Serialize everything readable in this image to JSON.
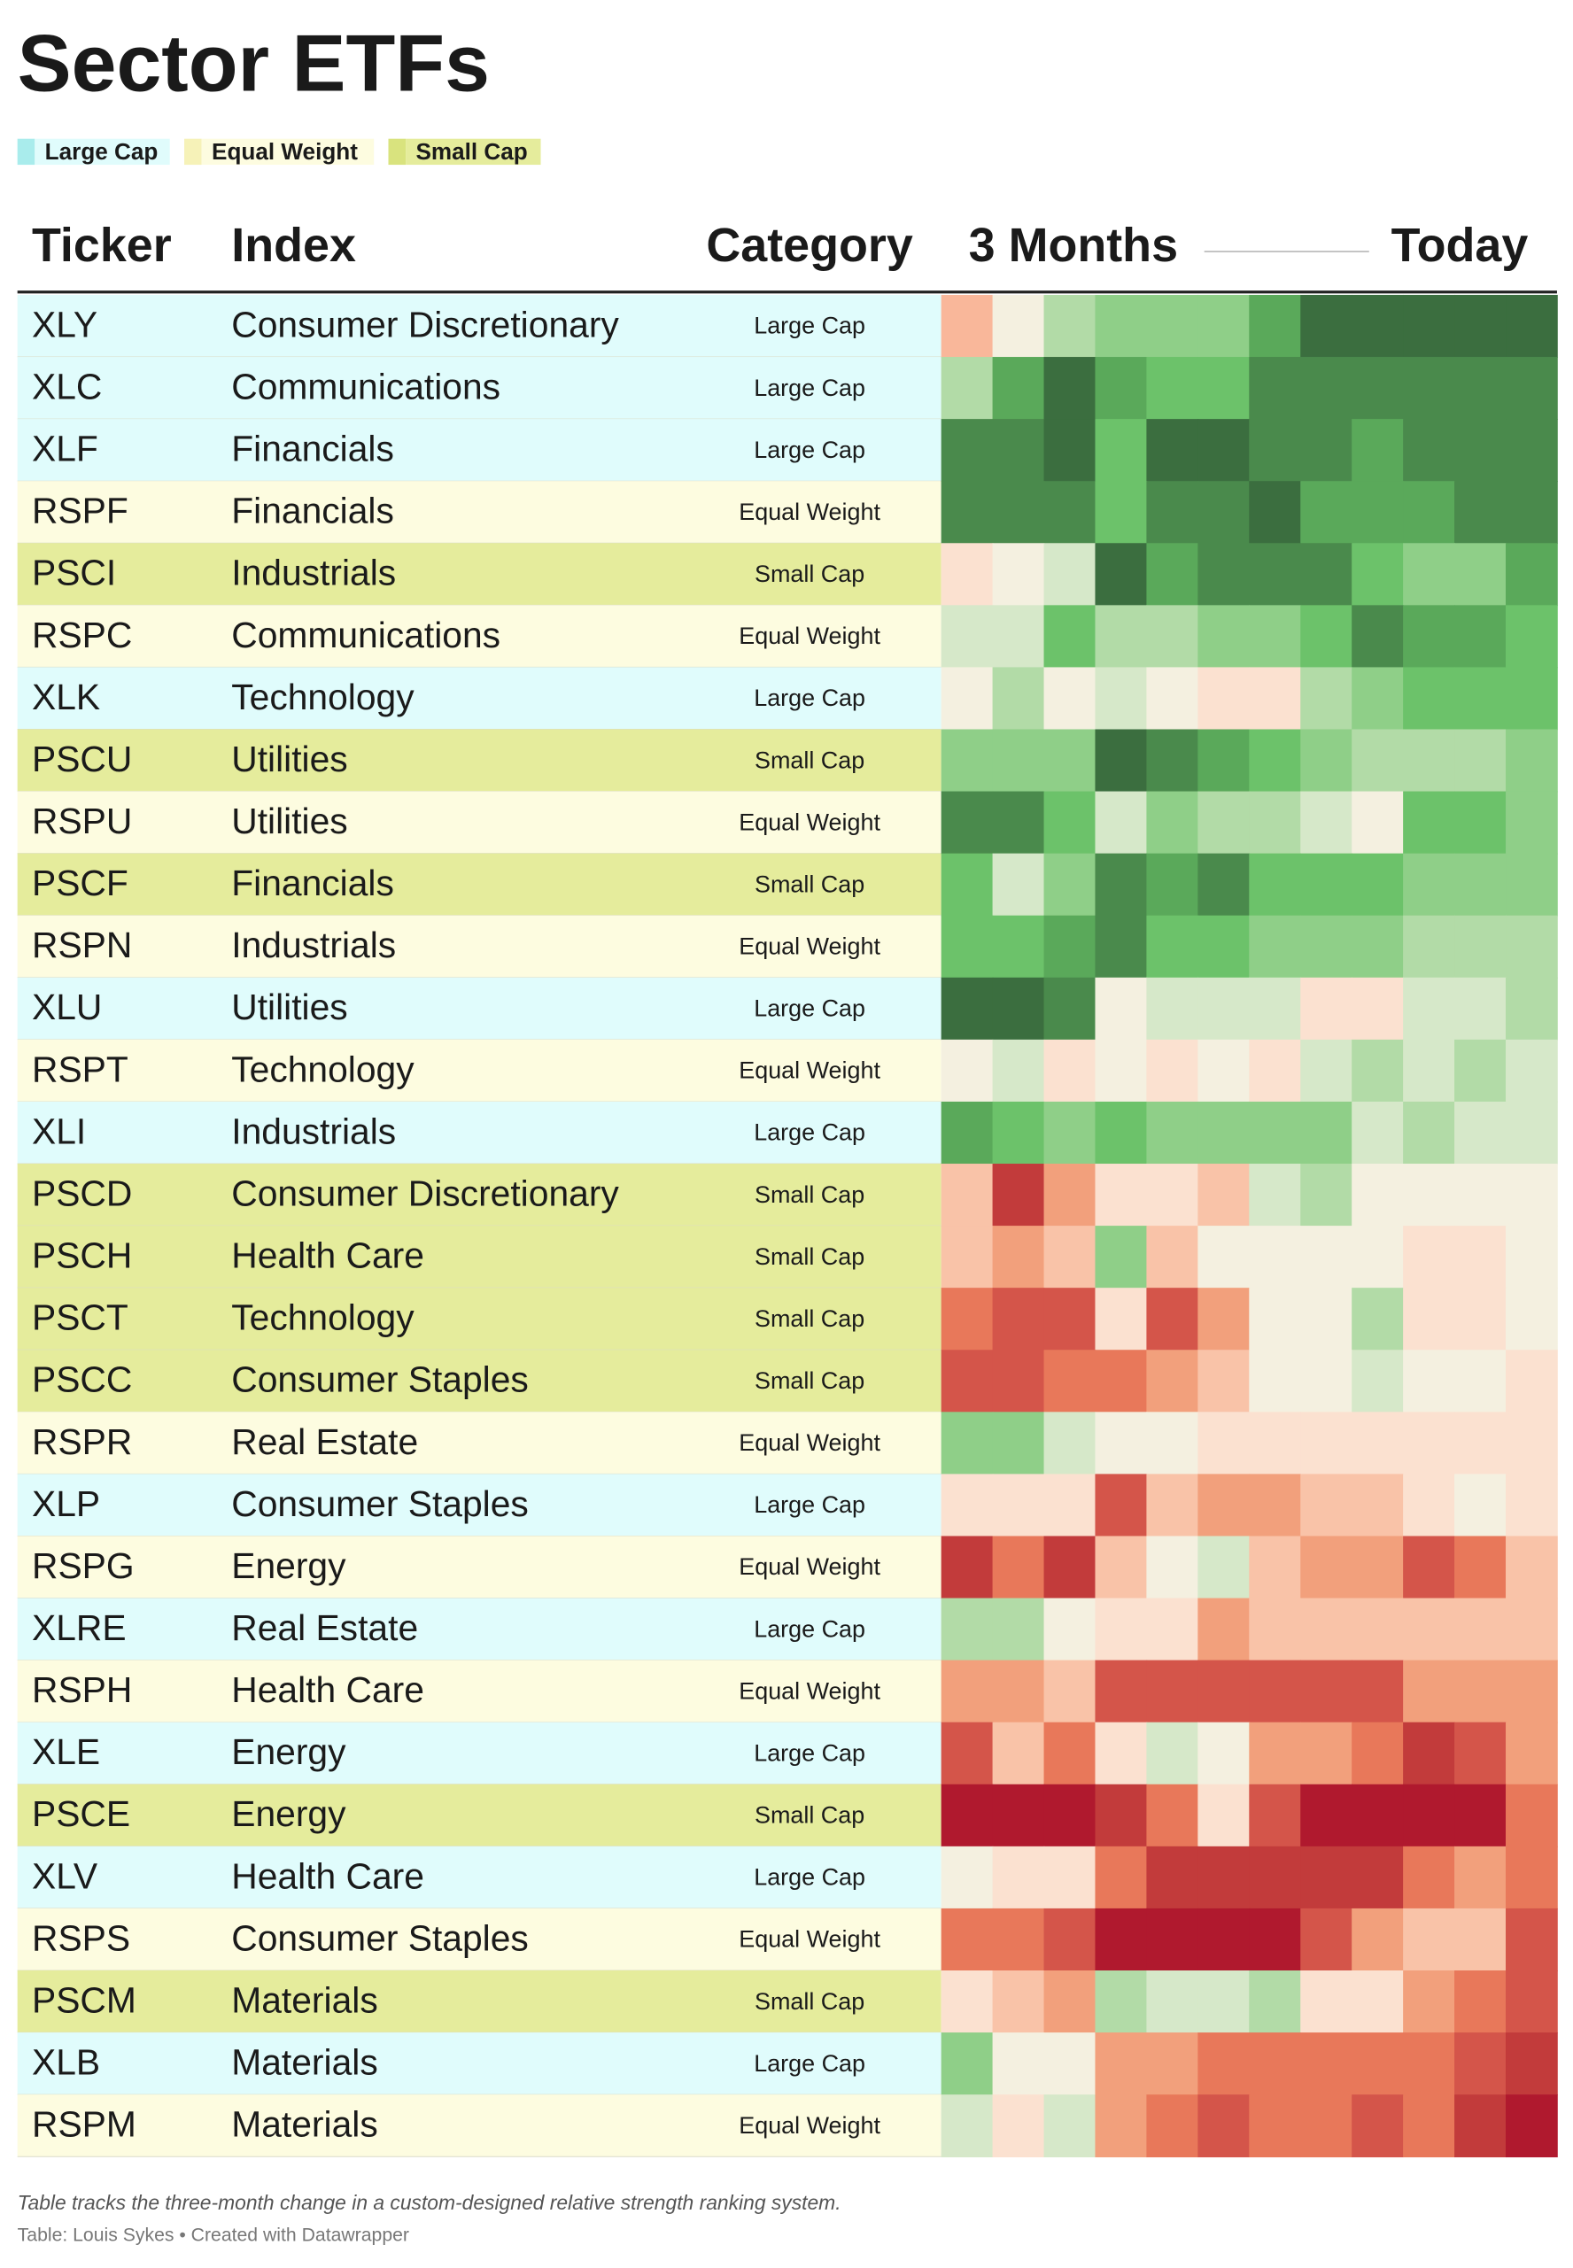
{
  "title": "Sector ETFs",
  "legend": [
    {
      "label": "Large Cap",
      "color": "#a9ecec",
      "row_color": "#e0fcfc"
    },
    {
      "label": "Equal Weight",
      "color": "#f6f2b8",
      "row_color": "#fdfce0"
    },
    {
      "label": "Small Cap",
      "color": "#d9e37e",
      "row_color": "#e5ec9c"
    }
  ],
  "columns": {
    "ticker": "Ticker",
    "index": "Index",
    "category": "Category",
    "from": "3 Months",
    "to": "Today"
  },
  "rows": [
    {
      "ticker": "XLY",
      "index": "Consumer Discretionary",
      "category": "Large Cap",
      "heat": [
        "#f9b79a",
        "#f4f0e0",
        "#b2dba7",
        "#8fcf88",
        "#8fcf88",
        "#8fcf88",
        "#5aa95a",
        "#3b6e3f",
        "#3b6e3f",
        "#3b6e3f",
        "#3b6e3f",
        "#3b6e3f"
      ]
    },
    {
      "ticker": "XLC",
      "index": "Communications",
      "category": "Large Cap",
      "heat": [
        "#b2dba7",
        "#5aa95a",
        "#3b6e3f",
        "#5aa95a",
        "#6cc26a",
        "#6cc26a",
        "#4a8a4c",
        "#4a8a4c",
        "#4a8a4c",
        "#4a8a4c",
        "#4a8a4c",
        "#4a8a4c"
      ]
    },
    {
      "ticker": "XLF",
      "index": "Financials",
      "category": "Large Cap",
      "heat": [
        "#4a8a4c",
        "#4a8a4c",
        "#3b6e3f",
        "#6cc26a",
        "#3b6e3f",
        "#3b6e3f",
        "#4a8a4c",
        "#4a8a4c",
        "#5aa95a",
        "#4a8a4c",
        "#4a8a4c",
        "#4a8a4c"
      ]
    },
    {
      "ticker": "RSPF",
      "index": "Financials",
      "category": "Equal Weight",
      "heat": [
        "#4a8a4c",
        "#4a8a4c",
        "#4a8a4c",
        "#6cc26a",
        "#4a8a4c",
        "#4a8a4c",
        "#3b6e3f",
        "#5aa95a",
        "#5aa95a",
        "#5aa95a",
        "#4a8a4c",
        "#4a8a4c"
      ]
    },
    {
      "ticker": "PSCI",
      "index": "Industrials",
      "category": "Small Cap",
      "heat": [
        "#fbe1d0",
        "#f4f0e0",
        "#d6e8c9",
        "#3b6e3f",
        "#5aa95a",
        "#4a8a4c",
        "#4a8a4c",
        "#4a8a4c",
        "#6cc26a",
        "#8fcf88",
        "#8fcf88",
        "#5aa95a"
      ]
    },
    {
      "ticker": "RSPC",
      "index": "Communications",
      "category": "Equal Weight",
      "heat": [
        "#d6e8c9",
        "#d6e8c9",
        "#6cc26a",
        "#b2dba7",
        "#b2dba7",
        "#8fcf88",
        "#8fcf88",
        "#6cc26a",
        "#4a8a4c",
        "#5aa95a",
        "#5aa95a",
        "#6cc26a"
      ]
    },
    {
      "ticker": "XLK",
      "index": "Technology",
      "category": "Large Cap",
      "heat": [
        "#f4f0e0",
        "#b2dba7",
        "#f4f0e0",
        "#d6e8c9",
        "#f4f0e0",
        "#fbe1d0",
        "#fbe1d0",
        "#b2dba7",
        "#8fcf88",
        "#6cc26a",
        "#6cc26a",
        "#6cc26a"
      ]
    },
    {
      "ticker": "PSCU",
      "index": "Utilities",
      "category": "Small Cap",
      "heat": [
        "#8fcf88",
        "#8fcf88",
        "#8fcf88",
        "#3b6e3f",
        "#4a8a4c",
        "#5aa95a",
        "#6cc26a",
        "#8fcf88",
        "#b2dba7",
        "#b2dba7",
        "#b2dba7",
        "#8fcf88"
      ]
    },
    {
      "ticker": "RSPU",
      "index": "Utilities",
      "category": "Equal Weight",
      "heat": [
        "#4a8a4c",
        "#4a8a4c",
        "#6cc26a",
        "#d6e8c9",
        "#8fcf88",
        "#b2dba7",
        "#b2dba7",
        "#d6e8c9",
        "#f4f0e0",
        "#6cc26a",
        "#6cc26a",
        "#8fcf88"
      ]
    },
    {
      "ticker": "PSCF",
      "index": "Financials",
      "category": "Small Cap",
      "heat": [
        "#6cc26a",
        "#d6e8c9",
        "#8fcf88",
        "#4a8a4c",
        "#5aa95a",
        "#4a8a4c",
        "#6cc26a",
        "#6cc26a",
        "#6cc26a",
        "#8fcf88",
        "#8fcf88",
        "#8fcf88"
      ]
    },
    {
      "ticker": "RSPN",
      "index": "Industrials",
      "category": "Equal Weight",
      "heat": [
        "#6cc26a",
        "#6cc26a",
        "#5aa95a",
        "#4a8a4c",
        "#6cc26a",
        "#6cc26a",
        "#8fcf88",
        "#8fcf88",
        "#8fcf88",
        "#b2dba7",
        "#b2dba7",
        "#b2dba7"
      ]
    },
    {
      "ticker": "XLU",
      "index": "Utilities",
      "category": "Large Cap",
      "heat": [
        "#3b6e3f",
        "#3b6e3f",
        "#4a8a4c",
        "#f4f0e0",
        "#d6e8c9",
        "#d6e8c9",
        "#d6e8c9",
        "#fbe1d0",
        "#fbe1d0",
        "#d6e8c9",
        "#d6e8c9",
        "#b2dba7"
      ]
    },
    {
      "ticker": "RSPT",
      "index": "Technology",
      "category": "Equal Weight",
      "heat": [
        "#f4f0e0",
        "#d6e8c9",
        "#fbe1d0",
        "#f4f0e0",
        "#fbe1d0",
        "#f4f0e0",
        "#fbe1d0",
        "#d6e8c9",
        "#b2dba7",
        "#d6e8c9",
        "#b2dba7",
        "#d6e8c9"
      ]
    },
    {
      "ticker": "XLI",
      "index": "Industrials",
      "category": "Large Cap",
      "heat": [
        "#5aa95a",
        "#6cc26a",
        "#8fcf88",
        "#6cc26a",
        "#8fcf88",
        "#8fcf88",
        "#8fcf88",
        "#8fcf88",
        "#d6e8c9",
        "#b2dba7",
        "#d6e8c9",
        "#d6e8c9"
      ]
    },
    {
      "ticker": "PSCD",
      "index": "Consumer Discretionary",
      "category": "Small Cap",
      "heat": [
        "#f9c3a8",
        "#c23b3b",
        "#f2a07c",
        "#fbe1d0",
        "#fbe1d0",
        "#f9c3a8",
        "#d6e8c9",
        "#b2dba7",
        "#f4f0e0",
        "#f4f0e0",
        "#f4f0e0",
        "#f4f0e0"
      ]
    },
    {
      "ticker": "PSCH",
      "index": "Health Care",
      "category": "Small Cap",
      "heat": [
        "#f9c3a8",
        "#f2a07c",
        "#f9c3a8",
        "#8fcf88",
        "#f9c3a8",
        "#f4f0e0",
        "#f4f0e0",
        "#f4f0e0",
        "#f4f0e0",
        "#fbe1d0",
        "#fbe1d0",
        "#f4f0e0"
      ]
    },
    {
      "ticker": "PSCT",
      "index": "Technology",
      "category": "Small Cap",
      "heat": [
        "#e8785a",
        "#d4554a",
        "#d4554a",
        "#fbe1d0",
        "#d4554a",
        "#f2a07c",
        "#f4f0e0",
        "#f4f0e0",
        "#b2dba7",
        "#fbe1d0",
        "#fbe1d0",
        "#f4f0e0"
      ]
    },
    {
      "ticker": "PSCC",
      "index": "Consumer Staples",
      "category": "Small Cap",
      "heat": [
        "#d4554a",
        "#d4554a",
        "#e8785a",
        "#e8785a",
        "#f2a07c",
        "#f9c3a8",
        "#f4f0e0",
        "#f4f0e0",
        "#d6e8c9",
        "#f4f0e0",
        "#f4f0e0",
        "#fbe1d0"
      ]
    },
    {
      "ticker": "RSPR",
      "index": "Real Estate",
      "category": "Equal Weight",
      "heat": [
        "#8fcf88",
        "#8fcf88",
        "#d6e8c9",
        "#f4f0e0",
        "#f4f0e0",
        "#fbe1d0",
        "#fbe1d0",
        "#fbe1d0",
        "#fbe1d0",
        "#fbe1d0",
        "#fbe1d0",
        "#fbe1d0"
      ]
    },
    {
      "ticker": "XLP",
      "index": "Consumer Staples",
      "category": "Large Cap",
      "heat": [
        "#fbe1d0",
        "#fbe1d0",
        "#fbe1d0",
        "#d4554a",
        "#f9c3a8",
        "#f2a07c",
        "#f2a07c",
        "#f9c3a8",
        "#f9c3a8",
        "#fbe1d0",
        "#f4f0e0",
        "#fbe1d0"
      ]
    },
    {
      "ticker": "RSPG",
      "index": "Energy",
      "category": "Equal Weight",
      "heat": [
        "#c23b3b",
        "#e8785a",
        "#c23b3b",
        "#f9c3a8",
        "#f4f0e0",
        "#d6e8c9",
        "#f9c3a8",
        "#f2a07c",
        "#f2a07c",
        "#d4554a",
        "#e8785a",
        "#f9c3a8"
      ]
    },
    {
      "ticker": "XLRE",
      "index": "Real Estate",
      "category": "Large Cap",
      "heat": [
        "#b2dba7",
        "#b2dba7",
        "#f4f0e0",
        "#fbe1d0",
        "#fbe1d0",
        "#f2a07c",
        "#f9c3a8",
        "#f9c3a8",
        "#f9c3a8",
        "#f9c3a8",
        "#f9c3a8",
        "#f9c3a8"
      ]
    },
    {
      "ticker": "RSPH",
      "index": "Health Care",
      "category": "Equal Weight",
      "heat": [
        "#f2a07c",
        "#f2a07c",
        "#f9c3a8",
        "#d4554a",
        "#d4554a",
        "#d4554a",
        "#d4554a",
        "#d4554a",
        "#d4554a",
        "#f2a07c",
        "#f2a07c",
        "#f2a07c"
      ]
    },
    {
      "ticker": "XLE",
      "index": "Energy",
      "category": "Large Cap",
      "heat": [
        "#d4554a",
        "#f9c3a8",
        "#e8785a",
        "#fbe1d0",
        "#d6e8c9",
        "#f4f0e0",
        "#f2a07c",
        "#f2a07c",
        "#e8785a",
        "#c23b3b",
        "#d4554a",
        "#f2a07c"
      ]
    },
    {
      "ticker": "PSCE",
      "index": "Energy",
      "category": "Small Cap",
      "heat": [
        "#b0192e",
        "#b0192e",
        "#b0192e",
        "#c23b3b",
        "#e8785a",
        "#fbe1d0",
        "#d4554a",
        "#b0192e",
        "#b0192e",
        "#b0192e",
        "#b0192e",
        "#e8785a"
      ]
    },
    {
      "ticker": "XLV",
      "index": "Health Care",
      "category": "Large Cap",
      "heat": [
        "#f4f0e0",
        "#fbe1d0",
        "#fbe1d0",
        "#e8785a",
        "#c23b3b",
        "#c23b3b",
        "#c23b3b",
        "#c23b3b",
        "#c23b3b",
        "#e8785a",
        "#f2a07c",
        "#e8785a"
      ]
    },
    {
      "ticker": "RSPS",
      "index": "Consumer Staples",
      "category": "Equal Weight",
      "heat": [
        "#e8785a",
        "#e8785a",
        "#d4554a",
        "#b0192e",
        "#b0192e",
        "#b0192e",
        "#b0192e",
        "#d4554a",
        "#f2a07c",
        "#f9c3a8",
        "#f9c3a8",
        "#d4554a"
      ]
    },
    {
      "ticker": "PSCM",
      "index": "Materials",
      "category": "Small Cap",
      "heat": [
        "#fbe1d0",
        "#f9c3a8",
        "#f2a07c",
        "#b2dba7",
        "#d6e8c9",
        "#d6e8c9",
        "#b2dba7",
        "#fbe1d0",
        "#fbe1d0",
        "#f2a07c",
        "#e8785a",
        "#d4554a"
      ]
    },
    {
      "ticker": "XLB",
      "index": "Materials",
      "category": "Large Cap",
      "heat": [
        "#8fcf88",
        "#f4f0e0",
        "#f4f0e0",
        "#f2a07c",
        "#f2a07c",
        "#e8785a",
        "#e8785a",
        "#e8785a",
        "#e8785a",
        "#e8785a",
        "#d4554a",
        "#c23b3b"
      ]
    },
    {
      "ticker": "RSPM",
      "index": "Materials",
      "category": "Equal Weight",
      "heat": [
        "#d6e8c9",
        "#fbe1d0",
        "#d6e8c9",
        "#f2a07c",
        "#e8785a",
        "#d4554a",
        "#e8785a",
        "#e8785a",
        "#d4554a",
        "#e8785a",
        "#c23b3b",
        "#b0192e"
      ]
    }
  ],
  "notes": "Table tracks the three-month change in a custom-designed relative strength ranking system.",
  "source": "Table: Louis Sykes • Created with Datawrapper"
}
